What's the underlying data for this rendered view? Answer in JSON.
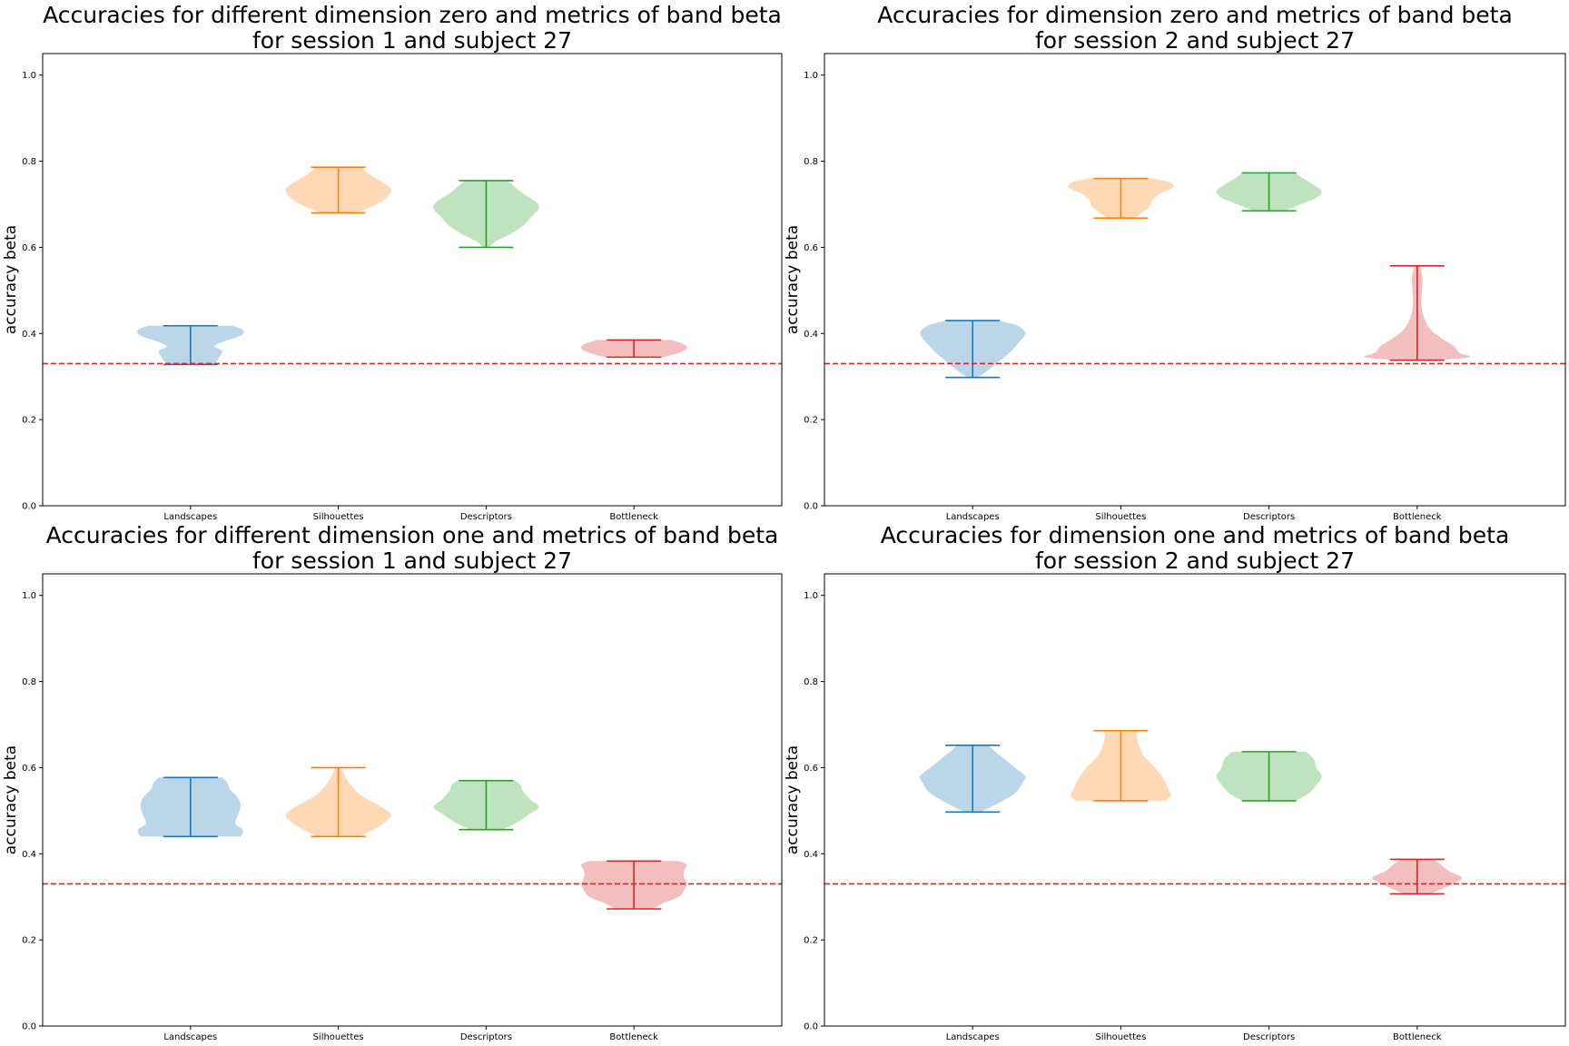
{
  "chart_data": [
    {
      "type": "violin",
      "title": "Accuracies for different dimension zero and metrics of band beta\nfor session 1 and subject 27",
      "ylabel": "accuracy beta",
      "ylim": [
        0.0,
        1.05
      ],
      "yticks": [
        "0.0",
        "0.2",
        "0.4",
        "0.6",
        "0.8",
        "1.0"
      ],
      "baseline": 0.33,
      "categories": [
        "Landscapes",
        "Silhouettes",
        "Descriptors",
        "Bottleneck"
      ],
      "series": [
        {
          "min": 0.328,
          "max": 0.418,
          "profile": [
            [
              0.328,
              0.45
            ],
            [
              0.345,
              0.55
            ],
            [
              0.36,
              0.6
            ],
            [
              0.37,
              0.45
            ],
            [
              0.38,
              0.6
            ],
            [
              0.395,
              0.95
            ],
            [
              0.408,
              1
            ],
            [
              0.418,
              0.8
            ]
          ]
        },
        {
          "min": 0.68,
          "max": 0.786,
          "profile": [
            [
              0.68,
              0.3
            ],
            [
              0.69,
              0.55
            ],
            [
              0.705,
              0.8
            ],
            [
              0.72,
              0.95
            ],
            [
              0.735,
              1
            ],
            [
              0.75,
              0.85
            ],
            [
              0.765,
              0.65
            ],
            [
              0.778,
              0.5
            ],
            [
              0.786,
              0.45
            ]
          ]
        },
        {
          "min": 0.6,
          "max": 0.755,
          "profile": [
            [
              0.6,
              0.05
            ],
            [
              0.615,
              0.2
            ],
            [
              0.63,
              0.45
            ],
            [
              0.65,
              0.7
            ],
            [
              0.67,
              0.85
            ],
            [
              0.69,
              1
            ],
            [
              0.705,
              0.95
            ],
            [
              0.725,
              0.7
            ],
            [
              0.745,
              0.5
            ],
            [
              0.755,
              0.4
            ]
          ]
        },
        {
          "min": 0.345,
          "max": 0.385,
          "profile": [
            [
              0.345,
              0.55
            ],
            [
              0.355,
              0.85
            ],
            [
              0.365,
              1
            ],
            [
              0.375,
              0.95
            ],
            [
              0.385,
              0.7
            ]
          ]
        }
      ]
    },
    {
      "type": "violin",
      "title": "Accuracies for dimension zero and metrics of band beta\nfor session 2 and subject 27",
      "ylabel": "accuracy beta",
      "ylim": [
        0.0,
        1.05
      ],
      "yticks": [
        "0.0",
        "0.2",
        "0.4",
        "0.6",
        "0.8",
        "1.0"
      ],
      "baseline": 0.33,
      "categories": [
        "Landscapes",
        "Silhouettes",
        "Descriptors",
        "Bottleneck"
      ],
      "series": [
        {
          "min": 0.298,
          "max": 0.43,
          "profile": [
            [
              0.298,
              0.1
            ],
            [
              0.315,
              0.3
            ],
            [
              0.335,
              0.5
            ],
            [
              0.355,
              0.7
            ],
            [
              0.375,
              0.85
            ],
            [
              0.4,
              1
            ],
            [
              0.418,
              0.85
            ],
            [
              0.43,
              0.5
            ]
          ]
        },
        {
          "min": 0.668,
          "max": 0.76,
          "profile": [
            [
              0.668,
              0.25
            ],
            [
              0.68,
              0.4
            ],
            [
              0.695,
              0.55
            ],
            [
              0.71,
              0.6
            ],
            [
              0.725,
              0.75
            ],
            [
              0.74,
              1
            ],
            [
              0.752,
              0.9
            ],
            [
              0.76,
              0.6
            ]
          ]
        },
        {
          "min": 0.685,
          "max": 0.773,
          "profile": [
            [
              0.685,
              0.3
            ],
            [
              0.7,
              0.6
            ],
            [
              0.715,
              0.9
            ],
            [
              0.73,
              1
            ],
            [
              0.745,
              0.85
            ],
            [
              0.76,
              0.65
            ],
            [
              0.773,
              0.5
            ]
          ]
        },
        {
          "min": 0.338,
          "max": 0.557,
          "profile": [
            [
              0.338,
              0.4
            ],
            [
              0.345,
              1
            ],
            [
              0.355,
              0.8
            ],
            [
              0.37,
              0.7
            ],
            [
              0.39,
              0.45
            ],
            [
              0.41,
              0.25
            ],
            [
              0.44,
              0.12
            ],
            [
              0.47,
              0.08
            ],
            [
              0.5,
              0.09
            ],
            [
              0.53,
              0.1
            ],
            [
              0.557,
              0.05
            ]
          ]
        }
      ]
    },
    {
      "type": "violin",
      "title": "Accuracies for different dimension one and metrics of band beta\nfor session 1 and subject 27",
      "ylabel": "accuracy beta",
      "ylim": [
        0.0,
        1.05
      ],
      "yticks": [
        "0.0",
        "0.2",
        "0.4",
        "0.6",
        "0.8",
        "1.0"
      ],
      "baseline": 0.33,
      "categories": [
        "Landscapes",
        "Silhouettes",
        "Descriptors",
        "Bottleneck"
      ],
      "series": [
        {
          "min": 0.44,
          "max": 0.577,
          "profile": [
            [
              0.44,
              0.95
            ],
            [
              0.455,
              1
            ],
            [
              0.47,
              0.85
            ],
            [
              0.49,
              0.9
            ],
            [
              0.51,
              0.95
            ],
            [
              0.53,
              0.9
            ],
            [
              0.55,
              0.75
            ],
            [
              0.565,
              0.7
            ],
            [
              0.577,
              0.6
            ]
          ]
        },
        {
          "min": 0.44,
          "max": 0.6,
          "profile": [
            [
              0.44,
              0.4
            ],
            [
              0.455,
              0.65
            ],
            [
              0.47,
              0.85
            ],
            [
              0.49,
              1
            ],
            [
              0.51,
              0.8
            ],
            [
              0.53,
              0.5
            ],
            [
              0.55,
              0.3
            ],
            [
              0.575,
              0.15
            ],
            [
              0.6,
              0.05
            ]
          ]
        },
        {
          "min": 0.456,
          "max": 0.57,
          "profile": [
            [
              0.456,
              0.3
            ],
            [
              0.47,
              0.55
            ],
            [
              0.49,
              0.8
            ],
            [
              0.508,
              1
            ],
            [
              0.525,
              0.85
            ],
            [
              0.545,
              0.7
            ],
            [
              0.56,
              0.65
            ],
            [
              0.57,
              0.55
            ]
          ]
        },
        {
          "min": 0.272,
          "max": 0.383,
          "profile": [
            [
              0.272,
              0.35
            ],
            [
              0.285,
              0.55
            ],
            [
              0.3,
              0.85
            ],
            [
              0.315,
              0.95
            ],
            [
              0.33,
              1
            ],
            [
              0.345,
              0.95
            ],
            [
              0.36,
              0.95
            ],
            [
              0.375,
              1
            ],
            [
              0.383,
              0.85
            ]
          ]
        }
      ]
    },
    {
      "type": "violin",
      "title": "Accuracies for dimension one and metrics of band beta\nfor session 2 and subject 27",
      "ylabel": "accuracy beta",
      "ylim": [
        0.0,
        1.05
      ],
      "yticks": [
        "0.0",
        "0.2",
        "0.4",
        "0.6",
        "0.8",
        "1.0"
      ],
      "baseline": 0.33,
      "categories": [
        "Landscapes",
        "Silhouettes",
        "Descriptors",
        "Bottleneck"
      ],
      "series": [
        {
          "min": 0.497,
          "max": 0.652,
          "profile": [
            [
              0.497,
              0.15
            ],
            [
              0.515,
              0.45
            ],
            [
              0.54,
              0.8
            ],
            [
              0.565,
              0.95
            ],
            [
              0.58,
              1
            ],
            [
              0.6,
              0.8
            ],
            [
              0.625,
              0.55
            ],
            [
              0.64,
              0.4
            ],
            [
              0.652,
              0.3
            ]
          ]
        },
        {
          "min": 0.523,
          "max": 0.686,
          "profile": [
            [
              0.523,
              0.85
            ],
            [
              0.535,
              0.95
            ],
            [
              0.55,
              0.9
            ],
            [
              0.575,
              0.8
            ],
            [
              0.6,
              0.65
            ],
            [
              0.625,
              0.45
            ],
            [
              0.65,
              0.35
            ],
            [
              0.675,
              0.3
            ],
            [
              0.686,
              0.35
            ]
          ]
        },
        {
          "min": 0.523,
          "max": 0.637,
          "profile": [
            [
              0.523,
              0.5
            ],
            [
              0.54,
              0.75
            ],
            [
              0.56,
              0.9
            ],
            [
              0.58,
              1
            ],
            [
              0.6,
              0.9
            ],
            [
              0.62,
              0.85
            ],
            [
              0.637,
              0.7
            ]
          ]
        },
        {
          "min": 0.307,
          "max": 0.387,
          "profile": [
            [
              0.307,
              0.25
            ],
            [
              0.32,
              0.5
            ],
            [
              0.335,
              0.75
            ],
            [
              0.345,
              0.85
            ],
            [
              0.36,
              0.6
            ],
            [
              0.375,
              0.45
            ],
            [
              0.387,
              0.3
            ]
          ]
        }
      ]
    }
  ],
  "colors": {
    "series": [
      "#1f77b4",
      "#ff7f0e",
      "#2ca02c",
      "#d62728"
    ],
    "baseline": "#d62728"
  }
}
